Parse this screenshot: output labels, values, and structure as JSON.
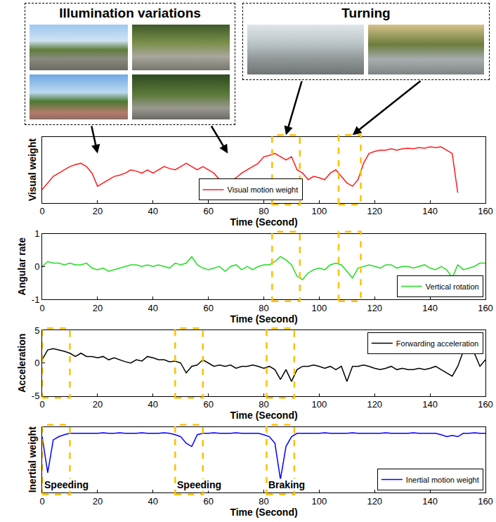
{
  "insets": [
    {
      "title": "Illumination variations",
      "images": 4,
      "arrows_at": [
        20,
        67
      ]
    },
    {
      "title": "Turning",
      "images": 2,
      "arrows_at": [
        88,
        112
      ]
    }
  ],
  "chart_data": [
    {
      "type": "line",
      "x_label": "Time (Second)",
      "y_label": "Visual weight",
      "x": [
        0,
        2,
        4,
        6,
        8,
        10,
        12,
        14,
        16,
        18,
        20,
        22,
        24,
        26,
        28,
        30,
        32,
        34,
        36,
        38,
        40,
        42,
        44,
        46,
        48,
        50,
        52,
        54,
        56,
        58,
        60,
        62,
        64,
        66,
        68,
        70,
        72,
        74,
        76,
        78,
        80,
        82,
        84,
        86,
        88,
        90,
        92,
        94,
        96,
        98,
        100,
        102,
        104,
        106,
        108,
        110,
        112,
        114,
        116,
        118,
        120,
        122,
        124,
        126,
        128,
        130,
        132,
        134,
        136,
        138,
        140,
        142,
        144,
        146,
        148,
        150,
        152,
        154,
        156,
        158,
        160
      ],
      "series": [
        {
          "name": "Visual motion weight",
          "color": "#ff1a1a",
          "values": [
            0.2,
            0.3,
            0.4,
            0.45,
            0.5,
            0.55,
            0.58,
            0.6,
            0.55,
            0.45,
            0.25,
            0.3,
            0.35,
            0.4,
            0.42,
            0.45,
            0.5,
            0.48,
            0.45,
            0.5,
            0.45,
            0.5,
            0.55,
            0.52,
            0.5,
            0.55,
            0.6,
            0.55,
            0.5,
            0.55,
            0.5,
            0.45,
            0.35,
            0.3,
            0.32,
            0.38,
            0.45,
            0.5,
            0.55,
            0.6,
            0.7,
            0.72,
            0.75,
            0.7,
            0.65,
            0.7,
            0.5,
            0.45,
            0.35,
            0.4,
            0.38,
            0.35,
            0.45,
            0.5,
            0.4,
            0.3,
            0.25,
            0.35,
            0.6,
            0.75,
            0.78,
            0.8,
            0.8,
            0.82,
            0.8,
            0.82,
            0.83,
            0.82,
            0.84,
            0.83,
            0.85,
            0.84,
            0.85,
            0.8,
            0.75,
            0.15,
            null,
            null,
            null,
            null,
            null
          ]
        }
      ],
      "xlim": [
        0,
        160
      ],
      "xticks": [
        0,
        20,
        40,
        60,
        80,
        100,
        120,
        140,
        160
      ],
      "ylim": [
        0,
        1
      ],
      "tick_labels": "x",
      "legend": "lower center",
      "highlights": [
        {
          "x": [
            83,
            93
          ]
        },
        {
          "x": [
            107,
            115
          ]
        }
      ]
    },
    {
      "type": "line",
      "x_label": "Time (Second)",
      "y_label": "Angular rate",
      "x": [
        0,
        2,
        4,
        6,
        8,
        10,
        12,
        14,
        16,
        18,
        20,
        22,
        24,
        26,
        28,
        30,
        32,
        34,
        36,
        38,
        40,
        42,
        44,
        46,
        48,
        50,
        52,
        54,
        56,
        58,
        60,
        62,
        64,
        66,
        68,
        70,
        72,
        74,
        76,
        78,
        80,
        82,
        84,
        86,
        88,
        90,
        92,
        94,
        96,
        98,
        100,
        102,
        104,
        106,
        108,
        110,
        112,
        114,
        116,
        118,
        120,
        122,
        124,
        126,
        128,
        130,
        132,
        134,
        136,
        138,
        140,
        142,
        144,
        146,
        148,
        150,
        152,
        154,
        156,
        158,
        160
      ],
      "series": [
        {
          "name": "Vertical rotation",
          "color": "#22dd22",
          "values": [
            0,
            0.15,
            0.1,
            0.1,
            0.05,
            0.1,
            0.05,
            0.05,
            0.1,
            -0.05,
            -0.1,
            -0.05,
            -0.15,
            -0.1,
            -0.05,
            0,
            0.05,
            0.05,
            0,
            0.05,
            0,
            0.05,
            0,
            -0.05,
            0.1,
            0.05,
            0.1,
            0.3,
            0.05,
            -0.05,
            -0.1,
            -0.05,
            0,
            -0.15,
            0,
            0.05,
            -0.1,
            0,
            -0.1,
            0,
            0.05,
            0.05,
            0.15,
            0.3,
            0.2,
            0.05,
            -0.3,
            -0.4,
            -0.2,
            -0.1,
            -0.05,
            -0.1,
            0.05,
            0.1,
            0.05,
            -0.15,
            -0.35,
            -0.05,
            0,
            0.05,
            0,
            -0.05,
            0.05,
            0.05,
            -0.05,
            0,
            0,
            -0.05,
            0,
            0.05,
            -0.05,
            -0.1,
            0,
            -0.1,
            -0.35,
            0.05,
            -0.1,
            -0.05,
            0,
            0.1,
            0.1
          ]
        }
      ],
      "xlim": [
        0,
        160
      ],
      "xticks": [
        0,
        20,
        40,
        60,
        80,
        100,
        120,
        140,
        160
      ],
      "ylim": [
        -1,
        1
      ],
      "yticks": [
        -1,
        0,
        1
      ],
      "legend": "lower right",
      "highlights": [
        {
          "x": [
            83,
            93
          ]
        },
        {
          "x": [
            107,
            115
          ]
        }
      ]
    },
    {
      "type": "line",
      "x_label": "Time (Second)",
      "y_label": "Acceleration",
      "x": [
        0,
        2,
        4,
        6,
        8,
        10,
        12,
        14,
        16,
        18,
        20,
        22,
        24,
        26,
        28,
        30,
        32,
        34,
        36,
        38,
        40,
        42,
        44,
        46,
        48,
        50,
        52,
        54,
        56,
        58,
        60,
        62,
        64,
        66,
        68,
        70,
        72,
        74,
        76,
        78,
        80,
        82,
        84,
        86,
        88,
        90,
        92,
        94,
        96,
        98,
        100,
        102,
        104,
        106,
        108,
        110,
        112,
        114,
        116,
        118,
        120,
        122,
        124,
        126,
        128,
        130,
        132,
        134,
        136,
        138,
        140,
        142,
        144,
        146,
        148,
        150,
        152,
        154,
        156,
        158,
        160
      ],
      "series": [
        {
          "name": "Forwarding acceleration",
          "color": "#000000",
          "values": [
            0.5,
            2,
            2.2,
            2,
            1.8,
            1.5,
            1,
            1.5,
            1,
            1,
            0.8,
            1,
            0.5,
            0.8,
            0.5,
            0.2,
            0,
            0.5,
            0.3,
            1,
            0.8,
            0.5,
            0.5,
            0.2,
            0.3,
            0,
            -1.5,
            -0.5,
            -0.3,
            0.5,
            0,
            -0.5,
            -0.3,
            -0.5,
            -0.3,
            -0.8,
            -0.5,
            -0.5,
            -0.3,
            -0.5,
            -0.8,
            -0.5,
            -1,
            -2.5,
            -1,
            -2.8,
            -1,
            -0.5,
            -0.5,
            -0.3,
            -0.5,
            -0.8,
            -0.5,
            -1,
            -0.5,
            -2.8,
            -0.5,
            -0.5,
            -0.3,
            -0.5,
            -0.8,
            -1,
            -0.8,
            -0.5,
            -1,
            -0.8,
            -1,
            -1,
            -0.8,
            -1,
            -0.8,
            -0.5,
            -1,
            -1.5,
            -2,
            -0.5,
            1.8,
            2,
            1.5,
            -0.5,
            0.5
          ]
        }
      ],
      "xlim": [
        0,
        160
      ],
      "xticks": [
        0,
        20,
        40,
        60,
        80,
        100,
        120,
        140,
        160
      ],
      "ylim": [
        -5,
        5
      ],
      "yticks": [
        -5,
        0,
        5
      ],
      "legend": "upper right",
      "highlights": [
        {
          "x": [
            0,
            10
          ]
        },
        {
          "x": [
            48,
            58
          ]
        },
        {
          "x": [
            81,
            91
          ]
        }
      ]
    },
    {
      "type": "line",
      "x_label": "Time (Second)",
      "y_label": "Inertial weight",
      "x": [
        0,
        2,
        4,
        6,
        8,
        10,
        12,
        14,
        16,
        18,
        20,
        22,
        24,
        26,
        28,
        30,
        32,
        34,
        36,
        38,
        40,
        42,
        44,
        46,
        48,
        50,
        52,
        54,
        56,
        58,
        60,
        62,
        64,
        66,
        68,
        70,
        72,
        74,
        76,
        78,
        80,
        82,
        84,
        86,
        88,
        90,
        92,
        94,
        96,
        98,
        100,
        102,
        104,
        106,
        108,
        110,
        112,
        114,
        116,
        118,
        120,
        122,
        124,
        126,
        128,
        130,
        132,
        134,
        136,
        138,
        140,
        142,
        144,
        146,
        148,
        150,
        152,
        154,
        156,
        158,
        160
      ],
      "series": [
        {
          "name": "Inertial motion weight",
          "color": "#0000ff",
          "values": [
            0.85,
            0.3,
            0.8,
            0.85,
            0.88,
            0.9,
            0.9,
            0.9,
            0.9,
            0.9,
            0.9,
            0.91,
            0.9,
            0.9,
            0.91,
            0.9,
            0.9,
            0.9,
            0.91,
            0.9,
            0.9,
            0.9,
            0.91,
            0.9,
            0.88,
            0.85,
            0.75,
            0.7,
            0.88,
            0.9,
            0.9,
            0.91,
            0.9,
            0.9,
            0.9,
            0.91,
            0.9,
            0.9,
            0.9,
            0.9,
            0.88,
            0.85,
            0.75,
            0.2,
            0.7,
            0.85,
            0.9,
            0.9,
            0.9,
            0.9,
            0.9,
            0.91,
            0.9,
            0.9,
            0.9,
            0.9,
            0.91,
            0.9,
            0.9,
            0.9,
            0.9,
            0.9,
            0.91,
            0.9,
            0.9,
            0.9,
            0.9,
            0.91,
            0.9,
            0.9,
            0.9,
            0.9,
            0.88,
            0.85,
            0.87,
            0.85,
            0.9,
            0.9,
            0.91,
            0.9,
            0.9
          ]
        }
      ],
      "xlim": [
        0,
        160
      ],
      "xticks": [
        0,
        20,
        40,
        60,
        80,
        100,
        120,
        140,
        160
      ],
      "ylim": [
        0,
        1
      ],
      "tick_labels": "x",
      "legend": "lower right",
      "highlights": [
        {
          "x": [
            0,
            10
          ],
          "label": "Speeding"
        },
        {
          "x": [
            48,
            58
          ],
          "label": "Speeding"
        },
        {
          "x": [
            81,
            91
          ],
          "label": "Braking"
        }
      ]
    }
  ]
}
